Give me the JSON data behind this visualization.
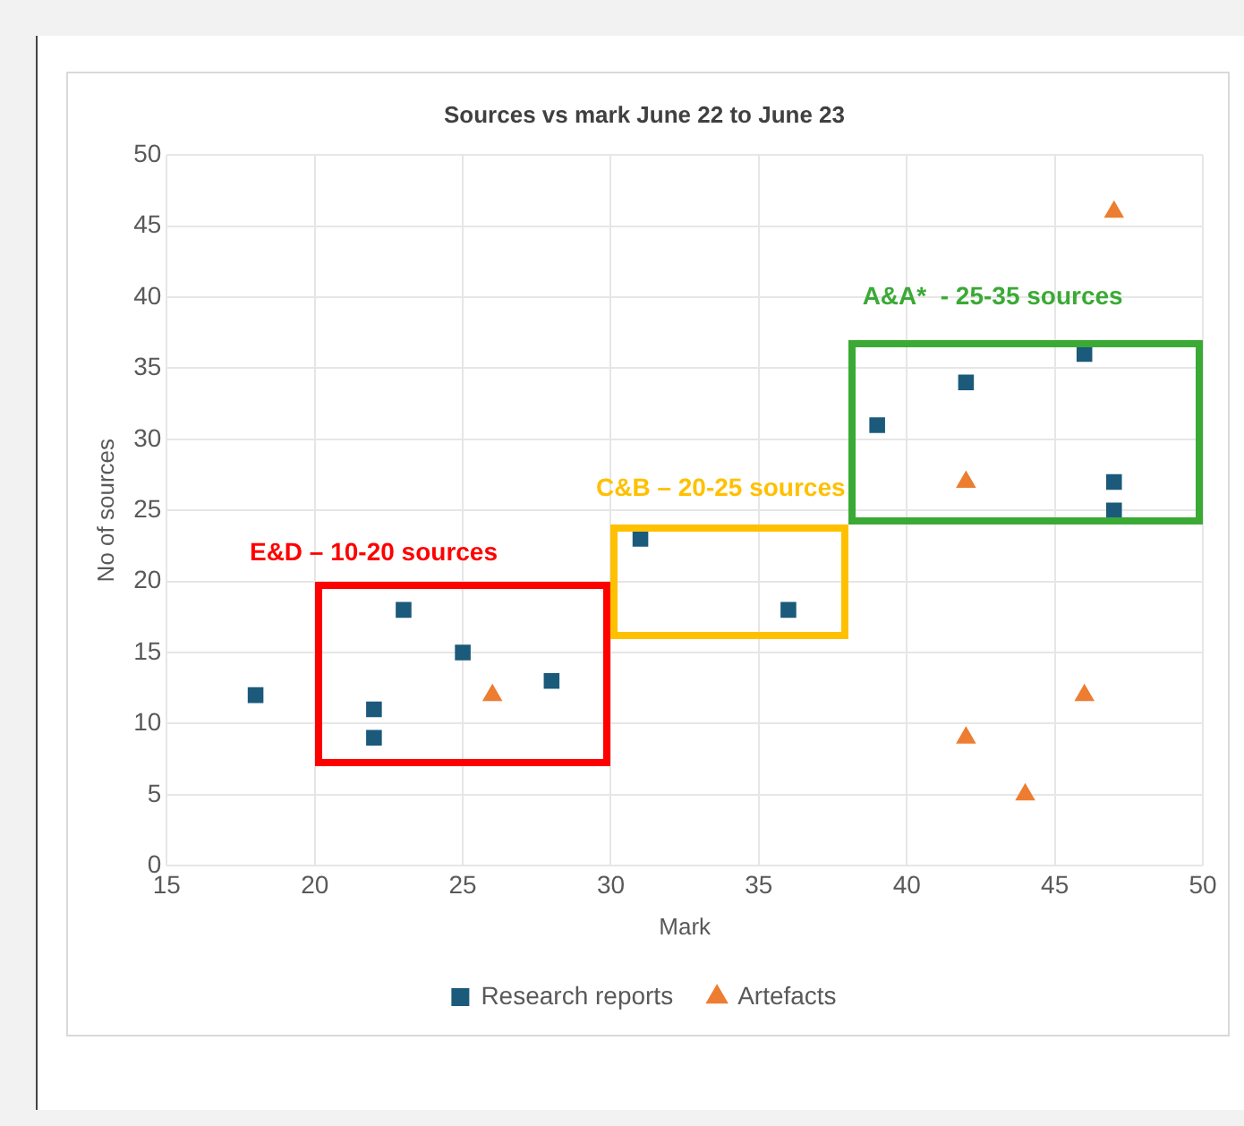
{
  "chart_data": {
    "type": "scatter",
    "title": "Sources vs mark June 22 to June 23",
    "xlabel": "Mark",
    "ylabel": "No of sources",
    "xlim": [
      15,
      50
    ],
    "xticks": [
      15,
      20,
      25,
      30,
      35,
      40,
      45,
      50
    ],
    "ylim": [
      0,
      50
    ],
    "yticks": [
      0,
      5,
      10,
      15,
      20,
      25,
      30,
      35,
      40,
      45,
      50
    ],
    "grid": true,
    "legend": "bottom",
    "series": [
      {
        "name": "Research reports",
        "color": "#1b5a7a",
        "marker": "square",
        "x": [
          18,
          22,
          22,
          23,
          25,
          28,
          31,
          36,
          39,
          42,
          46,
          47,
          47
        ],
        "values": [
          12,
          11,
          9,
          18,
          15,
          13,
          23,
          18,
          31,
          34,
          36,
          27,
          25
        ]
      },
      {
        "name": "Artefacts",
        "color": "#ed7d31",
        "marker": "triangle",
        "x": [
          26,
          42,
          42,
          44,
          46,
          47
        ],
        "values": [
          12,
          27,
          9,
          5,
          12,
          46
        ]
      }
    ],
    "annotations": [
      "E&D – 10-20 sources",
      "C&B – 20-25 sources",
      "A&A*  - 25-35 sources"
    ]
  }
}
